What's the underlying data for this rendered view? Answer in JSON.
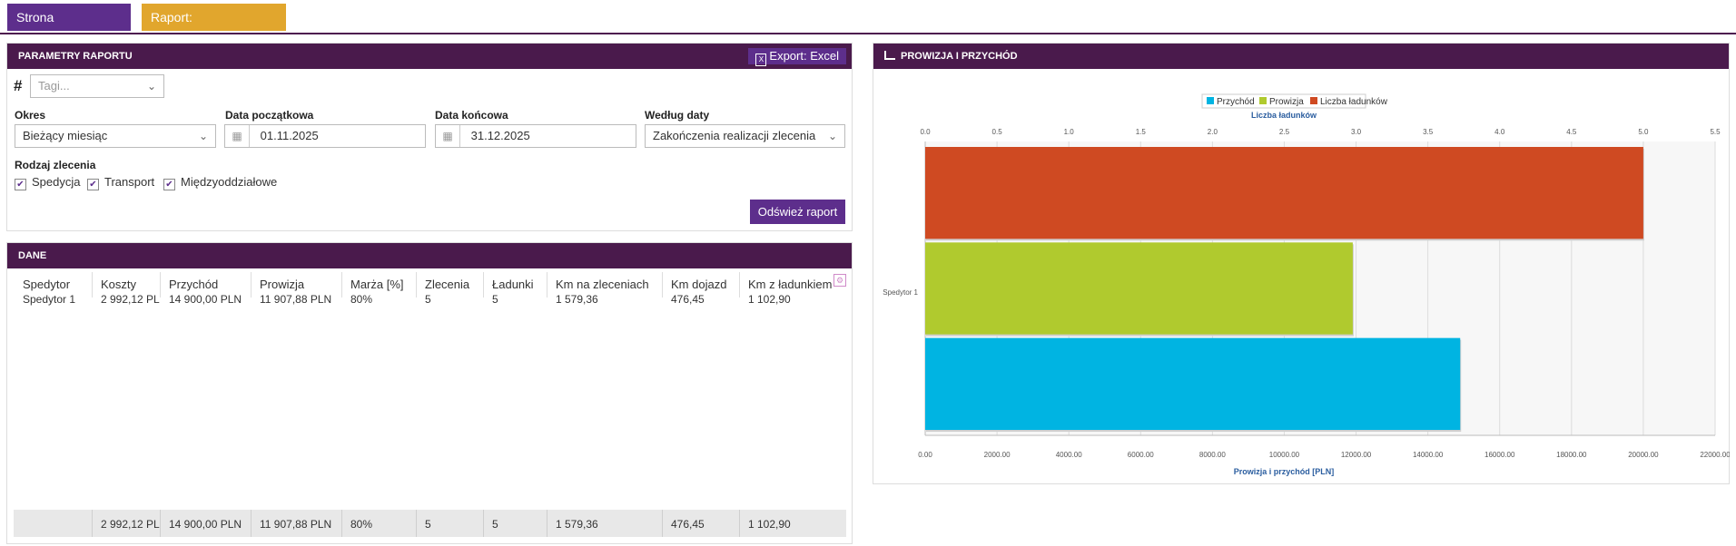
{
  "tabs": [
    {
      "label": "Strona startowa",
      "close": "✕"
    },
    {
      "label": "Raport: Spedytorzy",
      "close": "✕"
    }
  ],
  "params": {
    "title": "PARAMETRY RAPORTU",
    "export_label": "Export: Excel",
    "hash": "#",
    "tags_placeholder": "Tagi...",
    "okres_label": "Okres",
    "okres_value": "Bieżący miesiąc",
    "start_label": "Data początkowa",
    "start_value": "01.11.2025",
    "end_label": "Data końcowa",
    "end_value": "31.12.2025",
    "by_date_label": "Według daty",
    "by_date_value": "Zakończenia realizacji zlecenia",
    "type_label": "Rodzaj zlecenia",
    "types": [
      "Spedycja",
      "Transport",
      "Międzyoddziałowe"
    ],
    "refresh_label": "Odśwież raport"
  },
  "data_panel": {
    "title": "DANE",
    "columns": [
      "Spedytor",
      "Koszty",
      "Przychód",
      "Prowizja",
      "Marża [%]",
      "Zlecenia",
      "Ładunki",
      "Km na zleceniach",
      "Km dojazd",
      "Km z ładunkiem"
    ],
    "row": [
      "Spedytor 1",
      "2 992,12 PLN",
      "14 900,00 PLN",
      "11 907,88 PLN",
      "80%",
      "5",
      "5",
      "1 579,36",
      "476,45",
      "1 102,90"
    ],
    "totals": [
      "",
      "2 992,12 PLN",
      "14 900,00 PLN",
      "11 907,88 PLN",
      "80%",
      "5",
      "5",
      "1 579,36",
      "476,45",
      "1 102,90"
    ]
  },
  "chart_panel": {
    "title": "PROWIZJA I PRZYCHÓD"
  },
  "chart_data": {
    "type": "bar",
    "orientation": "horizontal",
    "categories": [
      "Spedytor 1"
    ],
    "series": [
      {
        "name": "Przychód",
        "values": [
          14900
        ],
        "axis": "bottom",
        "color": "#00b4e2"
      },
      {
        "name": "Prowizja",
        "values": [
          11907.88
        ],
        "axis": "bottom",
        "color": "#b0ca2e"
      },
      {
        "name": "Liczba ładunków",
        "values": [
          5
        ],
        "axis": "top",
        "color": "#cf4a22"
      }
    ],
    "top_axis": {
      "label": "Liczba ładunków",
      "range": [
        0,
        5.5
      ],
      "ticks": [
        "0.0",
        "0.5",
        "1.0",
        "1.5",
        "2.0",
        "2.5",
        "3.0",
        "3.5",
        "4.0",
        "4.5",
        "5.0",
        "5.5"
      ]
    },
    "bottom_axis": {
      "label": "Prowizja i przychód [PLN]",
      "range": [
        0,
        22000
      ],
      "ticks": [
        "0.00",
        "2000.00",
        "4000.00",
        "6000.00",
        "8000.00",
        "10000.00",
        "12000.00",
        "14000.00",
        "16000.00",
        "18000.00",
        "20000.00",
        "22000.00"
      ]
    },
    "legend_position": "top-center",
    "grid": true
  }
}
